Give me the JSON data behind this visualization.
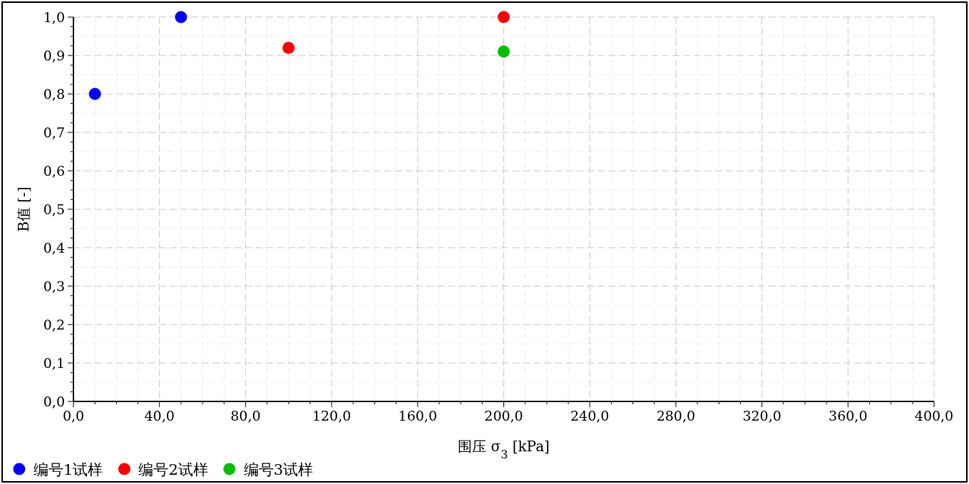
{
  "chart_data": {
    "type": "scatter",
    "xlabel": "围压 σ$_{3}$ [kPa]",
    "ylabel": "B值 [-]",
    "xlim": [
      0,
      400
    ],
    "ylim": [
      0,
      1
    ],
    "xticks": [
      {
        "value": 0,
        "label": "0,0"
      },
      {
        "value": 40,
        "label": "40,0"
      },
      {
        "value": 80,
        "label": "80,0"
      },
      {
        "value": 120,
        "label": "120,0"
      },
      {
        "value": 160,
        "label": "160,0"
      },
      {
        "value": 200,
        "label": "200,0"
      },
      {
        "value": 240,
        "label": "240,0"
      },
      {
        "value": 280,
        "label": "280,0"
      },
      {
        "value": 320,
        "label": "320,0"
      },
      {
        "value": 360,
        "label": "360,0"
      },
      {
        "value": 400,
        "label": "400,0"
      }
    ],
    "yticks": [
      {
        "value": 0,
        "label": "0,0"
      },
      {
        "value": 0.1,
        "label": "0,1"
      },
      {
        "value": 0.2,
        "label": "0,2"
      },
      {
        "value": 0.3,
        "label": "0,3"
      },
      {
        "value": 0.4,
        "label": "0,4"
      },
      {
        "value": 0.5,
        "label": "0,5"
      },
      {
        "value": 0.6,
        "label": "0,6"
      },
      {
        "value": 0.7,
        "label": "0,7"
      },
      {
        "value": 0.8,
        "label": "0,8"
      },
      {
        "value": 0.9,
        "label": "0,9"
      },
      {
        "value": 1,
        "label": "1,0"
      }
    ],
    "grid": true,
    "legend": "bottom left",
    "marker": "circle",
    "series": [
      {
        "name": "编号1试样",
        "color": "#0000ff",
        "x": [
          10,
          50
        ],
        "values": [
          0.8,
          1.0
        ]
      },
      {
        "name": "编号2试样",
        "color": "#ff0000",
        "x": [
          100,
          200
        ],
        "values": [
          0.92,
          1.0
        ]
      },
      {
        "name": "编号3试样",
        "color": "#00c000",
        "x": [
          200
        ],
        "values": [
          0.91
        ]
      }
    ]
  }
}
